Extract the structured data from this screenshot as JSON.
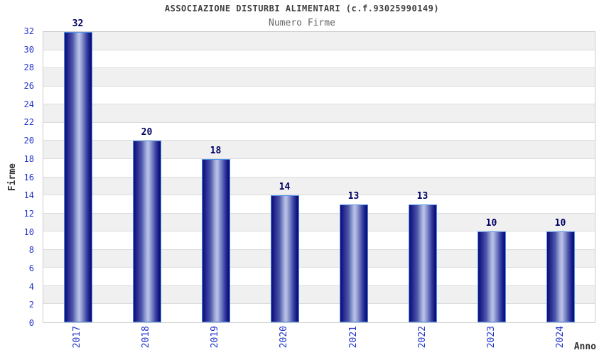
{
  "chart_data": {
    "type": "bar",
    "title": "ASSOCIAZIONE DISTURBI ALIMENTARI (c.f.93025990149)",
    "subtitle": "Numero Firme",
    "xlabel": "Anno",
    "ylabel": "Firme",
    "categories": [
      "2017",
      "2018",
      "2019",
      "2020",
      "2021",
      "2022",
      "2023",
      "2024"
    ],
    "values": [
      32,
      20,
      18,
      14,
      13,
      13,
      10,
      10
    ],
    "ylim": [
      0,
      32
    ],
    "ytick_step": 2,
    "grid": true,
    "legend": "none",
    "bands_alternating": true,
    "colors": {
      "bar_dark": "#0d0d75",
      "bar_light": "#bcc4ea",
      "bar_border": "#4f93ea",
      "axis_tick_label": "#2233cc",
      "value_label": "#000066",
      "title_text": "#404040",
      "subtitle_text": "#666666",
      "band_gray": "#f0f0f0",
      "gridline": "#dcdcdc",
      "plot_border": "#cccccc",
      "background": "#ffffff"
    }
  }
}
